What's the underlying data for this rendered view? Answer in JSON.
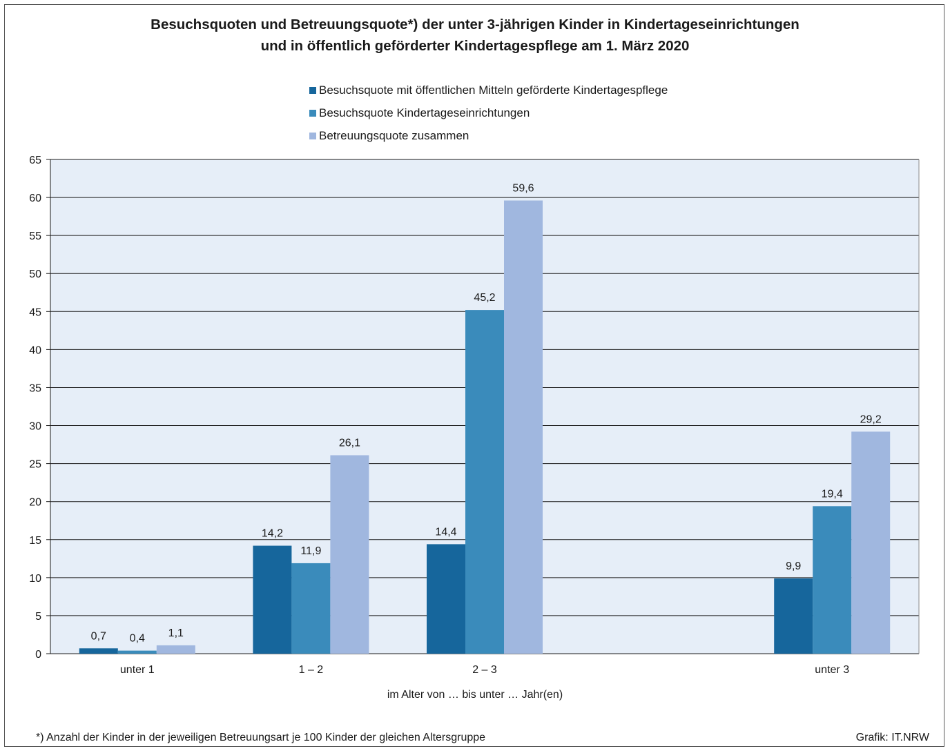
{
  "chart_data": {
    "type": "bar",
    "title": "Besuchsquoten und Betreuungsquote*) der unter 3-jährigen Kinder in Kindertageseinrichtungen",
    "subtitle": "und in öffentlich geförderter Kindertagespflege am 1. März 2020",
    "categories": [
      "unter 1",
      "1 –  2",
      "2 –  3",
      "unter 3"
    ],
    "series": [
      {
        "name": "Besuchsquote mit öffentlichen Mitteln geförderte Kindertagespflege",
        "values": [
          0.7,
          14.2,
          14.4,
          9.9
        ],
        "labels": [
          "0,7",
          "14,2",
          "14,4",
          "9,9"
        ],
        "color": "#16669c"
      },
      {
        "name": "Besuchsquote Kindertageseinrichtungen",
        "values": [
          0.4,
          11.9,
          45.2,
          19.4
        ],
        "labels": [
          "0,4",
          "11,9",
          "45,2",
          "19,4"
        ],
        "color": "#3a8bbb"
      },
      {
        "name": "Betreuungsquote zusammen",
        "values": [
          1.1,
          26.1,
          59.6,
          29.2
        ],
        "labels": [
          "1,1",
          "26,1",
          "59,6",
          "29,2"
        ],
        "color": "#a0b7df"
      }
    ],
    "xlabel": "im Alter von … bis unter … Jahr(en)",
    "ylabel": "",
    "ylim": [
      0,
      65
    ],
    "yticks": [
      "0",
      "5",
      "10",
      "15",
      "20",
      "25",
      "30",
      "35",
      "40",
      "45",
      "50",
      "55",
      "60",
      "65"
    ],
    "grid": true,
    "legend_position": "top",
    "plot_background": "#e6eef8"
  },
  "footnote": "*) Anzahl der Kinder in der jeweiligen Betreuungsart je 100 Kinder der gleichen Altersgruppe",
  "credit": "Grafik: IT.NRW"
}
